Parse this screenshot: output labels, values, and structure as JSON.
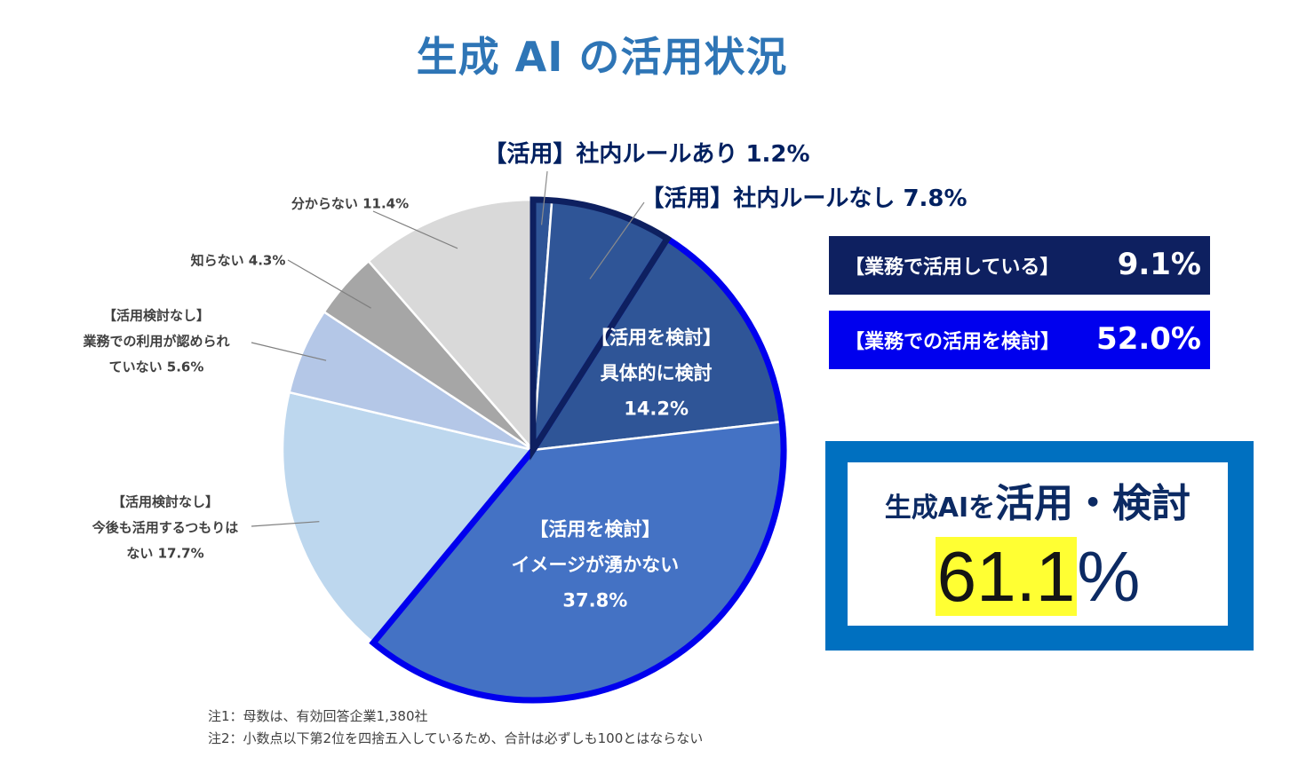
{
  "title": "生成 AI の活用状況",
  "chart_data": {
    "type": "pie",
    "slices": [
      {
        "label": "【活用】社内ルールあり",
        "value": 1.2,
        "color": "#2f5597"
      },
      {
        "label": "【活用】社内ルールなし",
        "value": 7.8,
        "color": "#2f5597"
      },
      {
        "label_lines": [
          "【活用を検討】",
          "具体的に検討"
        ],
        "value_text": "14.2%",
        "value": 14.2,
        "color": "#2f5597"
      },
      {
        "label_lines": [
          "【活用を検討】",
          "イメージが湧かない"
        ],
        "value_text": "37.8%",
        "value": 37.8,
        "color": "#4472c4"
      },
      {
        "label_lines": [
          "【活用検討なし】",
          "今後も活用するつもりは",
          "ない 17.7%"
        ],
        "value": 17.7,
        "color": "#bdd7ee"
      },
      {
        "label_lines": [
          "【活用検討なし】",
          "業務での利用が認められ",
          "ていない 5.6%"
        ],
        "value": 5.6,
        "color": "#b4c7e7"
      },
      {
        "label_lines": [
          "知らない 4.3%"
        ],
        "value": 4.3,
        "color": "#a6a6a6"
      },
      {
        "label_lines": [
          "分からない 11.4%"
        ],
        "value": 11.4,
        "color": "#d9d9d9"
      }
    ],
    "outside_labels": [
      "【活用】社内ルールあり 1.2%",
      "【活用】社内ルールなし 7.8%"
    ],
    "highlight_groups": [
      {
        "name": "【業務で活用している】",
        "value": 9.1,
        "border_color": "#0e2060"
      },
      {
        "name": "【業務での活用を検討】",
        "value": 52.0,
        "border_color": "#0000ee"
      }
    ]
  },
  "summary": {
    "using_label": "【業務で活用している】",
    "using_value": "9.1%",
    "considering_label": "【業務での活用を検討】",
    "considering_value": "52.0%",
    "total_label_small": "生成AIを",
    "total_label_big": "活用・検討",
    "total_value_num": "61.1",
    "total_value_unit": "%"
  },
  "notes": [
    "注1：母数は、有効回答企業1,380社",
    "注2：小数点以下第2位を四捨五入しているため、合計は必ずしも100とはならない"
  ]
}
